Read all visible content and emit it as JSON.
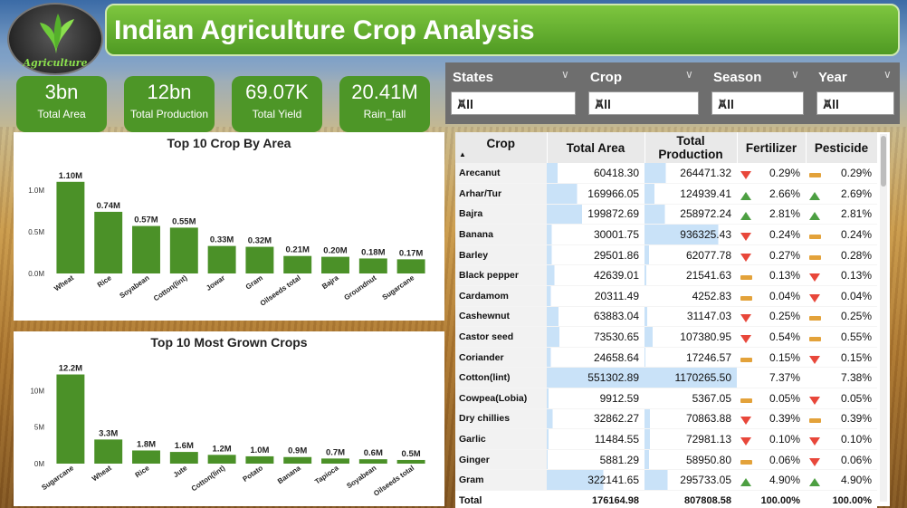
{
  "title": "Indian Agriculture Crop Analysis",
  "logo_text": "Agriculture",
  "kpis": [
    {
      "value": "3bn",
      "label": "Total Area"
    },
    {
      "value": "12bn",
      "label": "Total Production"
    },
    {
      "value": "69.07K",
      "label": "Total Yield"
    },
    {
      "value": "20.41M",
      "label": "Rain_fall"
    }
  ],
  "filters": [
    {
      "label": "States",
      "value": "All"
    },
    {
      "label": "Crop",
      "value": "All"
    },
    {
      "label": "Season",
      "value": "All"
    },
    {
      "label": "Year",
      "value": "All"
    }
  ],
  "colors": {
    "bar": "#4b9128",
    "title_green": "#5aaa2c",
    "kpi": "#4d9627",
    "down": "#e8473a",
    "up": "#4d9f42",
    "flat": "#e3a23a",
    "highlight": "#c9e2f8"
  },
  "chart_data": [
    {
      "type": "bar",
      "title": "Top 10 Crop By Area",
      "categories": [
        "Wheat",
        "Rice",
        "Soyabean",
        "Cotton(lint)",
        "Jowar",
        "Gram",
        "Oilseeds total",
        "Bajra",
        "Groundnut",
        "Sugarcane"
      ],
      "values": [
        1.1,
        0.74,
        0.57,
        0.55,
        0.33,
        0.32,
        0.21,
        0.2,
        0.18,
        0.17
      ],
      "data_labels": [
        "1.10M",
        "0.74M",
        "0.57M",
        "0.55M",
        "0.33M",
        "0.32M",
        "0.21M",
        "0.20M",
        "0.18M",
        "0.17M"
      ],
      "yticks": [
        "0.0M",
        "0.5M",
        "1.0M"
      ],
      "ytick_values": [
        0,
        0.5,
        1.0
      ],
      "ylim": [
        0,
        1.25
      ]
    },
    {
      "type": "bar",
      "title": "Top 10 Most Grown Crops",
      "categories": [
        "Sugarcane",
        "Wheat",
        "Rice",
        "Jute",
        "Cotton(lint)",
        "Potato",
        "Banana",
        "Tapioca",
        "Soyabean",
        "Oilseeds total"
      ],
      "values": [
        12.2,
        3.3,
        1.8,
        1.6,
        1.2,
        1.0,
        0.9,
        0.7,
        0.6,
        0.5
      ],
      "data_labels": [
        "12.2M",
        "3.3M",
        "1.8M",
        "1.6M",
        "1.2M",
        "1.0M",
        "0.9M",
        "0.7M",
        "0.6M",
        "0.5M"
      ],
      "yticks": [
        "0M",
        "5M",
        "10M"
      ],
      "ytick_values": [
        0,
        5,
        10
      ],
      "ylim": [
        0,
        14
      ]
    }
  ],
  "table": {
    "headers": [
      "Crop",
      "Total Area",
      "Total Production",
      "Fertilizer",
      "Pesticide"
    ],
    "rows": [
      {
        "crop": "Arecanut",
        "area": "60418.30",
        "prod": "264471.32",
        "fert": "0.29%",
        "fert_ind": "down",
        "pest": "0.29%",
        "pest_ind": "flat"
      },
      {
        "crop": "Arhar/Tur",
        "area": "169966.05",
        "prod": "124939.41",
        "fert": "2.66%",
        "fert_ind": "up",
        "pest": "2.69%",
        "pest_ind": "up"
      },
      {
        "crop": "Bajra",
        "area": "199872.69",
        "prod": "258972.24",
        "fert": "2.81%",
        "fert_ind": "up",
        "pest": "2.81%",
        "pest_ind": "up"
      },
      {
        "crop": "Banana",
        "area": "30001.75",
        "prod": "936325.43",
        "fert": "0.24%",
        "fert_ind": "down",
        "pest": "0.24%",
        "pest_ind": "flat"
      },
      {
        "crop": "Barley",
        "area": "29501.86",
        "prod": "62077.78",
        "fert": "0.27%",
        "fert_ind": "down",
        "pest": "0.28%",
        "pest_ind": "flat"
      },
      {
        "crop": "Black pepper",
        "area": "42639.01",
        "prod": "21541.63",
        "fert": "0.13%",
        "fert_ind": "flat",
        "pest": "0.13%",
        "pest_ind": "down"
      },
      {
        "crop": "Cardamom",
        "area": "20311.49",
        "prod": "4252.83",
        "fert": "0.04%",
        "fert_ind": "flat",
        "pest": "0.04%",
        "pest_ind": "down"
      },
      {
        "crop": "Cashewnut",
        "area": "63883.04",
        "prod": "31147.03",
        "fert": "0.25%",
        "fert_ind": "down",
        "pest": "0.25%",
        "pest_ind": "flat"
      },
      {
        "crop": "Castor seed",
        "area": "73530.65",
        "prod": "107380.95",
        "fert": "0.54%",
        "fert_ind": "down",
        "pest": "0.55%",
        "pest_ind": "flat"
      },
      {
        "crop": "Coriander",
        "area": "24658.64",
        "prod": "17246.57",
        "fert": "0.15%",
        "fert_ind": "flat",
        "pest": "0.15%",
        "pest_ind": "down"
      },
      {
        "crop": "Cotton(lint)",
        "area": "551302.89",
        "prod": "1170265.50",
        "fert": "7.37%",
        "fert_ind": "none",
        "pest": "7.38%",
        "pest_ind": "none"
      },
      {
        "crop": "Cowpea(Lobia)",
        "area": "9912.59",
        "prod": "5367.05",
        "fert": "0.05%",
        "fert_ind": "flat",
        "pest": "0.05%",
        "pest_ind": "down"
      },
      {
        "crop": "Dry chillies",
        "area": "32862.27",
        "prod": "70863.88",
        "fert": "0.39%",
        "fert_ind": "down",
        "pest": "0.39%",
        "pest_ind": "flat"
      },
      {
        "crop": "Garlic",
        "area": "11484.55",
        "prod": "72981.13",
        "fert": "0.10%",
        "fert_ind": "down",
        "pest": "0.10%",
        "pest_ind": "down"
      },
      {
        "crop": "Ginger",
        "area": "5881.29",
        "prod": "58950.80",
        "fert": "0.06%",
        "fert_ind": "flat",
        "pest": "0.06%",
        "pest_ind": "down"
      },
      {
        "crop": "Gram",
        "area": "322141.65",
        "prod": "295733.05",
        "fert": "4.90%",
        "fert_ind": "up",
        "pest": "4.90%",
        "pest_ind": "up"
      }
    ],
    "total": {
      "crop": "Total",
      "area": "176164.98",
      "prod": "807808.58",
      "fert": "100.00%",
      "pest": "100.00%"
    }
  }
}
